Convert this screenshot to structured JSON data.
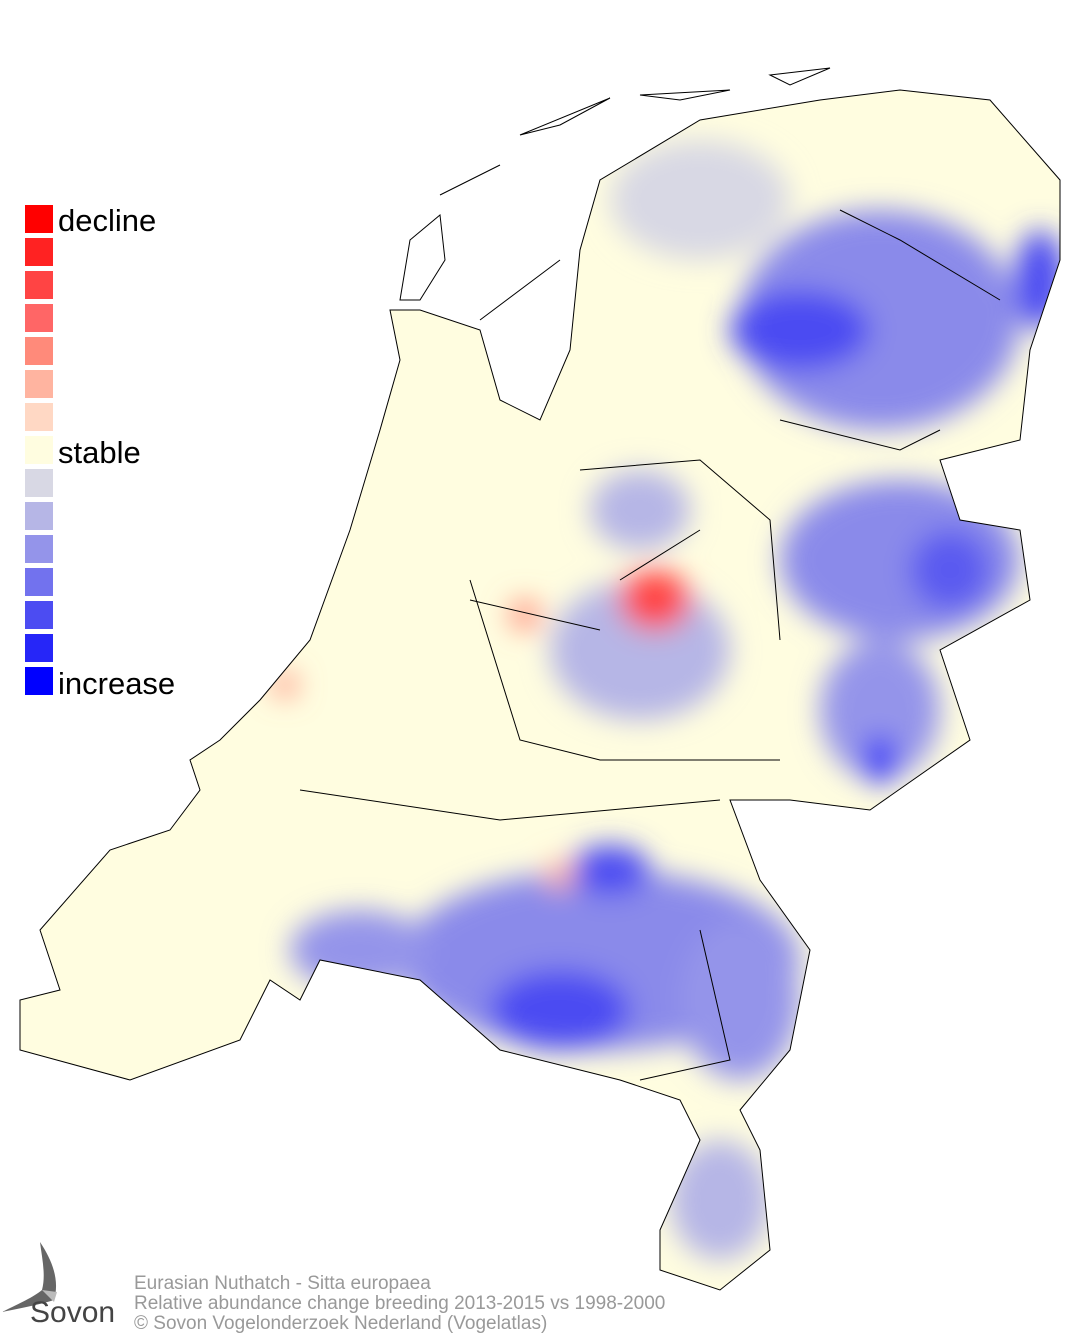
{
  "legend": {
    "labels": {
      "top": "decline",
      "middle": "stable",
      "bottom": "increase"
    },
    "colors": [
      "#ff0000",
      "#ff2222",
      "#ff4444",
      "#ff6666",
      "#ff8a7a",
      "#ffb4a0",
      "#ffd8c4",
      "#fffde0",
      "#d8d8e4",
      "#b6b6e6",
      "#9494ea",
      "#7272ee",
      "#4c4cf2",
      "#2626f8",
      "#0000ff"
    ]
  },
  "footer": {
    "species": "Eurasian Nuthatch - Sitta europaea",
    "description": "Relative abundance change breeding 2013-2015 vs 1998-2000",
    "copyright": "© Sovon Vogelonderzoek Nederland (Vogelatlas)"
  },
  "logo": {
    "text": "Sovon"
  },
  "map": {
    "stable_color": "#fffde0",
    "outline_color": "#000000"
  }
}
